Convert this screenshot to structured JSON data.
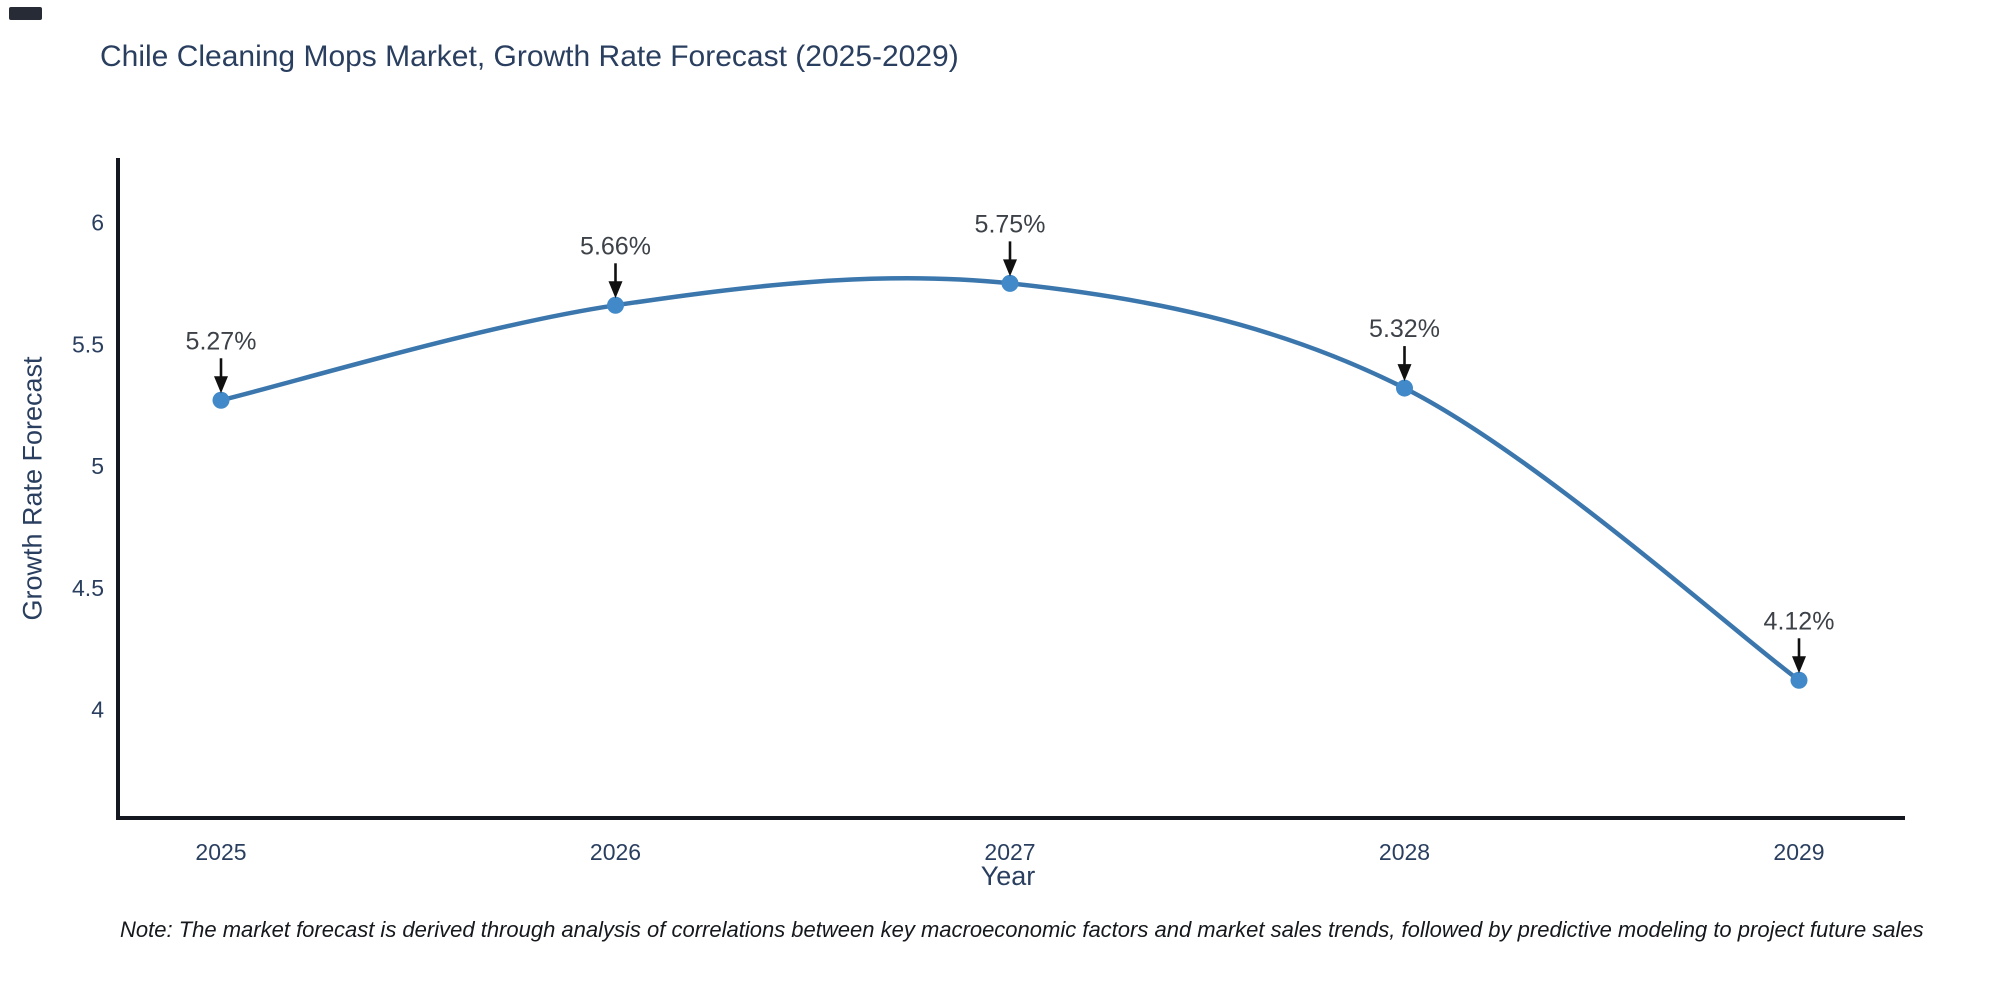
{
  "chart_data": {
    "type": "line",
    "title": "Chile Cleaning Mops Market, Growth Rate Forecast (2025-2029)",
    "xlabel": "Year",
    "ylabel": "Growth Rate Forecast",
    "x": [
      2025,
      2026,
      2027,
      2028,
      2029
    ],
    "values": [
      5.27,
      5.66,
      5.75,
      5.32,
      4.12
    ],
    "point_labels": [
      "5.27%",
      "5.66%",
      "5.75%",
      "5.32%",
      "4.12%"
    ],
    "yticks": [
      4,
      4.5,
      5,
      5.5,
      6
    ],
    "ylim": [
      3.55,
      6.26
    ],
    "line_shape": "spline",
    "grid": false,
    "legend": "none",
    "annotation_style": "value label with downward black arrow to marker",
    "colors": {
      "line": "#3b77ad",
      "marker": "#4189c8",
      "axis": "#14171f",
      "text": "#2a3f5f",
      "annotation_text": "#3d4249",
      "annotation_arrow": "#111111"
    }
  },
  "note": {
    "text": "Note: The market forecast is derived through analysis of correlations between key macroeconomic factors and market sales trends, followed by predictive modeling to project future sales"
  }
}
